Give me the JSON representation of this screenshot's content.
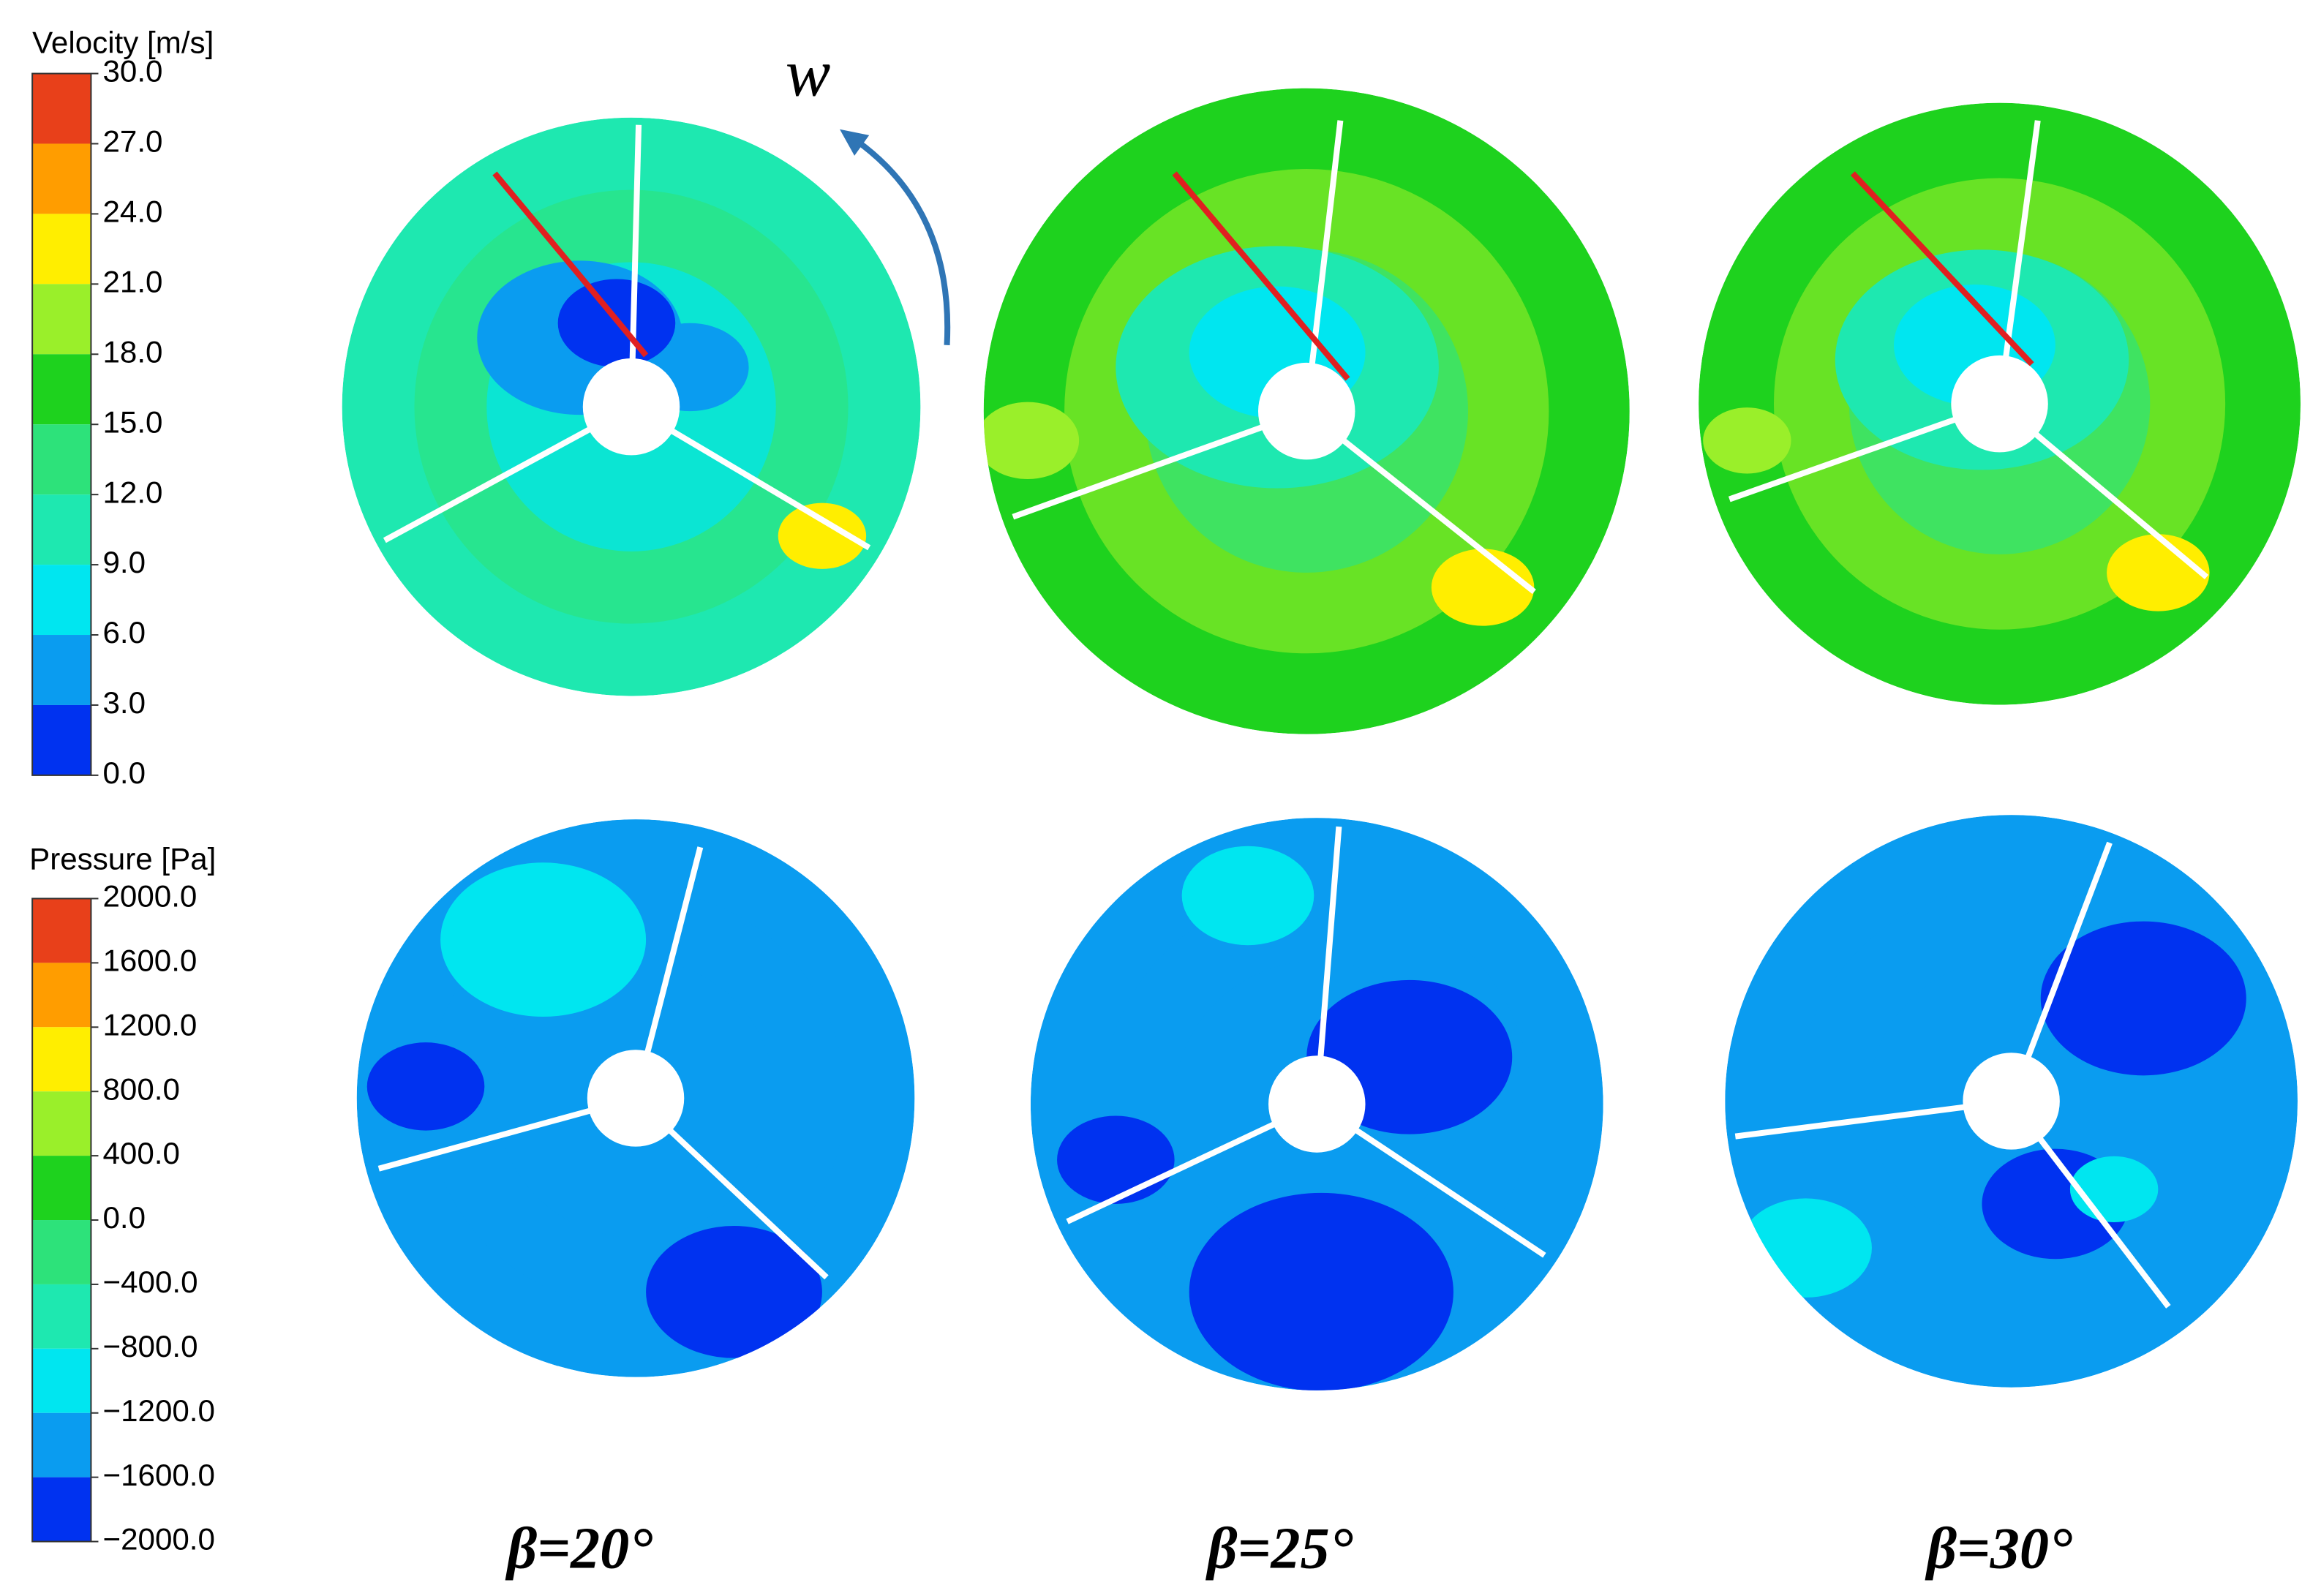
{
  "velocity_legend": {
    "title": "Velocity [m/s]",
    "ticks": [
      "30.0",
      "27.0",
      "24.0",
      "21.0",
      "18.0",
      "15.0",
      "12.0",
      "9.0",
      "6.0",
      "3.0",
      "0.0"
    ],
    "colors": [
      "#e8401a",
      "#ff9d00",
      "#ffee00",
      "#9aef2a",
      "#1ed21e",
      "#2de27a",
      "#1ee8b0",
      "#00e6f0",
      "#0a9cf0",
      "#0032f0"
    ]
  },
  "pressure_legend": {
    "title": "Pressure [Pa]",
    "ticks": [
      "2000.0",
      "1600.0",
      "1200.0",
      "800.0",
      "400.0",
      "0.0",
      "−400.0",
      "−800.0",
      "−1200.0",
      "−1600.0",
      "−2000.0"
    ],
    "colors": [
      "#e8401a",
      "#ff9d00",
      "#ffee00",
      "#9aef2a",
      "#1ed21e",
      "#2de27a",
      "#1ee8b0",
      "#00e6f0",
      "#0a9cf0",
      "#0032f0"
    ]
  },
  "rotation_label": "w",
  "panel_labels": [
    "β=20°",
    "β=25°",
    "β=30°"
  ]
}
